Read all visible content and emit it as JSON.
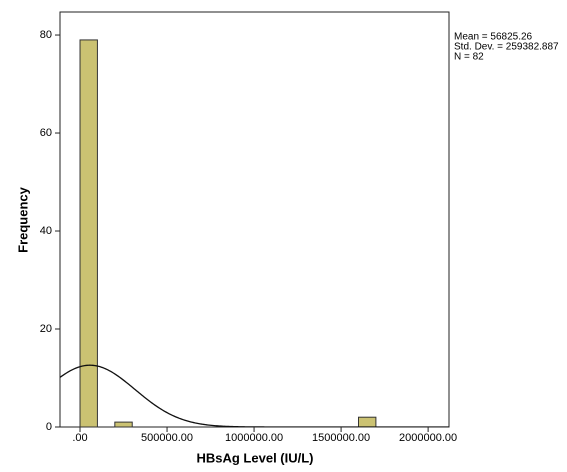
{
  "chart_data": {
    "type": "histogram",
    "x_label": "HBsAg Level (IU/L)",
    "y_label": "Frequency",
    "bins": [
      0,
      100000,
      200000,
      300000,
      400000,
      500000,
      600000,
      700000,
      800000,
      900000,
      1000000,
      1100000,
      1200000,
      1300000,
      1400000,
      1500000,
      1600000,
      1700000
    ],
    "counts": [
      79,
      0,
      1,
      0,
      0,
      0,
      0,
      0,
      0,
      0,
      0,
      0,
      0,
      0,
      0,
      0,
      2
    ],
    "color": "#cbc272",
    "edge_color": "#333333",
    "xlim": [
      -115000,
      2120000
    ],
    "xticks": [
      {
        "value": 0,
        "label": ".00"
      },
      {
        "value": 500000,
        "label": "500000.00"
      },
      {
        "value": 1000000,
        "label": "1000000.00"
      },
      {
        "value": 1500000,
        "label": "1500000.00"
      },
      {
        "value": 2000000,
        "label": "2000000.00"
      }
    ],
    "ylim": [
      0,
      84.7
    ],
    "yticks": [
      0,
      20,
      40,
      60,
      80
    ],
    "grid": false,
    "stats": {
      "mean": 56825.26,
      "std_dev": 259382.887,
      "n": 82,
      "labels": [
        "Mean = 56825.26",
        "Std. Dev. = 259382.887",
        "N = 82"
      ]
    }
  }
}
